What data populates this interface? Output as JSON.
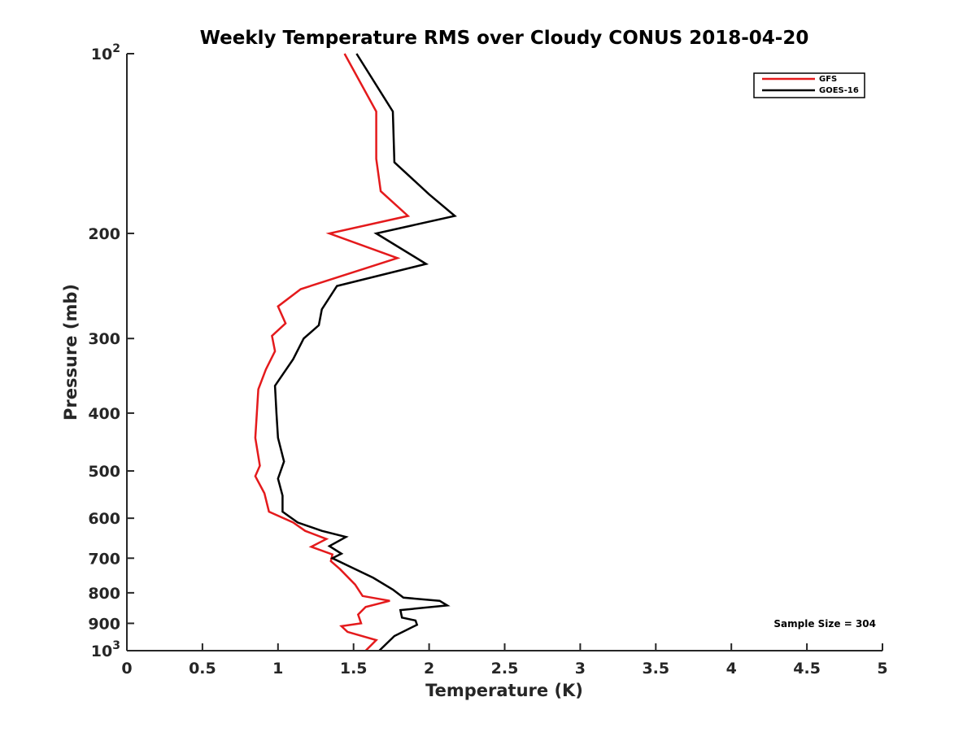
{
  "chart_data": {
    "type": "line",
    "title": "Weekly Temperature RMS over Cloudy CONUS 2018-04-20",
    "xlabel": "Temperature (K)",
    "ylabel": "Pressure (mb)",
    "xlim": [
      0,
      5
    ],
    "ylim": [
      100,
      1000
    ],
    "y_scale": "log",
    "y_reversed": true,
    "grid": false,
    "legend_position": "top-right",
    "x_ticks": [
      0,
      0.5,
      1,
      1.5,
      2,
      2.5,
      3,
      3.5,
      4,
      4.5,
      5
    ],
    "x_tick_labels": [
      "0",
      "0.5",
      "1",
      "1.5",
      "2",
      "2.5",
      "3",
      "3.5",
      "4",
      "4.5",
      "5"
    ],
    "y_ticks": [
      {
        "value": 100,
        "label": "10",
        "sup": "2"
      },
      {
        "value": 200,
        "label": "200",
        "sup": ""
      },
      {
        "value": 300,
        "label": "300",
        "sup": ""
      },
      {
        "value": 400,
        "label": "400",
        "sup": ""
      },
      {
        "value": 500,
        "label": "500",
        "sup": ""
      },
      {
        "value": 600,
        "label": "600",
        "sup": ""
      },
      {
        "value": 700,
        "label": "700",
        "sup": ""
      },
      {
        "value": 800,
        "label": "800",
        "sup": ""
      },
      {
        "value": 900,
        "label": "900",
        "sup": ""
      },
      {
        "value": 1000,
        "label": "10",
        "sup": "3"
      }
    ],
    "annotation": "Sample Size = 304",
    "series": [
      {
        "name": "GFS",
        "color": "#e41a1c",
        "points": [
          [
            1.44,
            100
          ],
          [
            1.65,
            125
          ],
          [
            1.65,
            150
          ],
          [
            1.68,
            170
          ],
          [
            1.86,
            187
          ],
          [
            1.34,
            200
          ],
          [
            1.79,
            220
          ],
          [
            1.15,
            248
          ],
          [
            1.0,
            265
          ],
          [
            1.05,
            283
          ],
          [
            0.96,
            297
          ],
          [
            0.98,
            315
          ],
          [
            0.92,
            338
          ],
          [
            0.87,
            365
          ],
          [
            0.86,
            400
          ],
          [
            0.85,
            440
          ],
          [
            0.88,
            490
          ],
          [
            0.85,
            510
          ],
          [
            0.91,
            545
          ],
          [
            0.94,
            585
          ],
          [
            1.1,
            610
          ],
          [
            1.18,
            630
          ],
          [
            1.32,
            650
          ],
          [
            1.22,
            670
          ],
          [
            1.36,
            690
          ],
          [
            1.35,
            708
          ],
          [
            1.41,
            730
          ],
          [
            1.51,
            775
          ],
          [
            1.56,
            810
          ],
          [
            1.74,
            825
          ],
          [
            1.58,
            845
          ],
          [
            1.53,
            870
          ],
          [
            1.55,
            900
          ],
          [
            1.42,
            910
          ],
          [
            1.46,
            930
          ],
          [
            1.65,
            960
          ],
          [
            1.58,
            1000
          ]
        ]
      },
      {
        "name": "GOES-16",
        "color": "#000000",
        "points": [
          [
            1.52,
            100
          ],
          [
            1.76,
            125
          ],
          [
            1.77,
            152
          ],
          [
            2.0,
            172
          ],
          [
            2.17,
            187
          ],
          [
            1.65,
            200
          ],
          [
            1.98,
            225
          ],
          [
            1.39,
            245
          ],
          [
            1.29,
            268
          ],
          [
            1.27,
            285
          ],
          [
            1.17,
            300
          ],
          [
            1.1,
            325
          ],
          [
            0.98,
            360
          ],
          [
            0.99,
            400
          ],
          [
            1.0,
            440
          ],
          [
            1.04,
            482
          ],
          [
            1.0,
            515
          ],
          [
            1.03,
            550
          ],
          [
            1.03,
            585
          ],
          [
            1.13,
            610
          ],
          [
            1.29,
            630
          ],
          [
            1.45,
            645
          ],
          [
            1.34,
            668
          ],
          [
            1.42,
            688
          ],
          [
            1.36,
            700
          ],
          [
            1.46,
            720
          ],
          [
            1.63,
            755
          ],
          [
            1.76,
            790
          ],
          [
            1.83,
            815
          ],
          [
            2.07,
            825
          ],
          [
            2.12,
            840
          ],
          [
            1.81,
            855
          ],
          [
            1.82,
            880
          ],
          [
            1.91,
            890
          ],
          [
            1.92,
            905
          ],
          [
            1.77,
            945
          ],
          [
            1.67,
            1000
          ]
        ]
      }
    ]
  }
}
